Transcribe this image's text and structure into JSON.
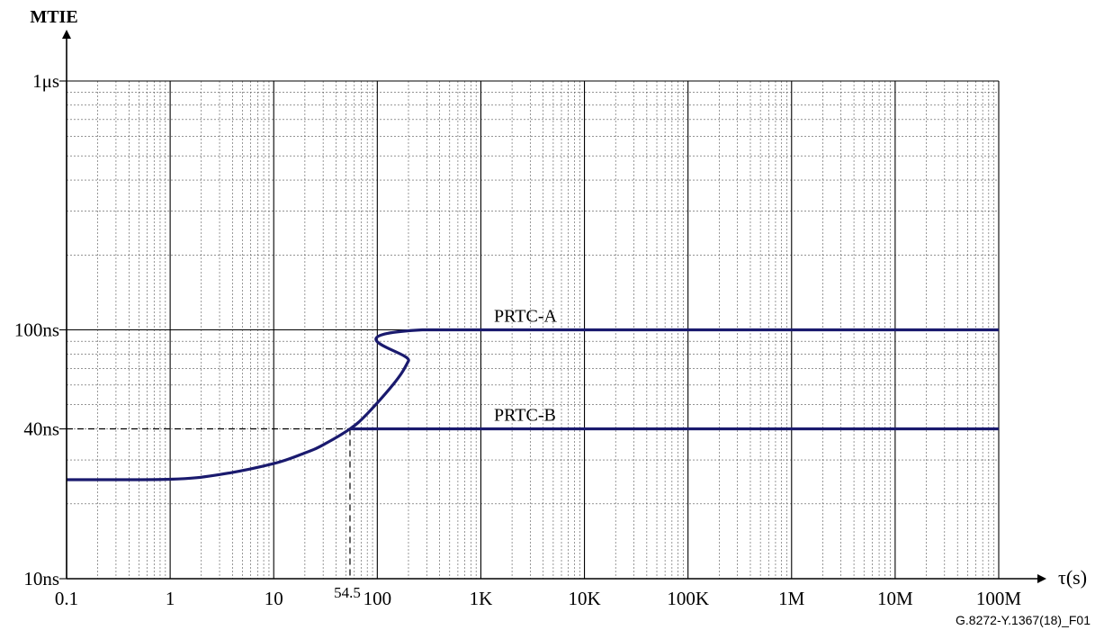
{
  "chart_data": {
    "type": "line",
    "xscale": "log",
    "yscale": "log",
    "xlim": [
      0.1,
      100000000
    ],
    "ylim": [
      10,
      1000
    ],
    "x_ticks": [
      {
        "value": 0.1,
        "label": "0.1"
      },
      {
        "value": 1,
        "label": "1"
      },
      {
        "value": 10,
        "label": "10"
      },
      {
        "value": 100,
        "label": "100"
      },
      {
        "value": 1000,
        "label": "1K"
      },
      {
        "value": 10000,
        "label": "10K"
      },
      {
        "value": 100000,
        "label": "100K"
      },
      {
        "value": 1000000,
        "label": "1M"
      },
      {
        "value": 10000000,
        "label": "10M"
      },
      {
        "value": 100000000,
        "label": "100M"
      }
    ],
    "y_ticks": [
      {
        "value": 10,
        "label": "10ns"
      },
      {
        "value": 40,
        "label": "40ns"
      },
      {
        "value": 100,
        "label": "100ns"
      },
      {
        "value": 1000,
        "label": "1μs"
      }
    ],
    "ylabel": "MTIE",
    "xlabel": "τ(s)",
    "grid": "log-minor",
    "line_color": "#1a1a6e",
    "series": [
      {
        "name": "PRTC-A",
        "points": [
          [
            0.1,
            25
          ],
          [
            1,
            25.1
          ],
          [
            3,
            26.2
          ],
          [
            10,
            29
          ],
          [
            20,
            32
          ],
          [
            30,
            34.5
          ],
          [
            54.5,
            40
          ],
          [
            80,
            46
          ],
          [
            150,
            62
          ],
          [
            200,
            75
          ],
          [
            273,
            100
          ],
          [
            100000000,
            100
          ]
        ]
      },
      {
        "name": "PRTC-B",
        "points": [
          [
            54.5,
            40
          ],
          [
            100000000,
            40
          ]
        ]
      }
    ],
    "annotations": [
      {
        "text": "54.5",
        "x": 54.5,
        "y": 40
      }
    ],
    "figure_id": "G.8272-Y.1367(18)_F01"
  }
}
